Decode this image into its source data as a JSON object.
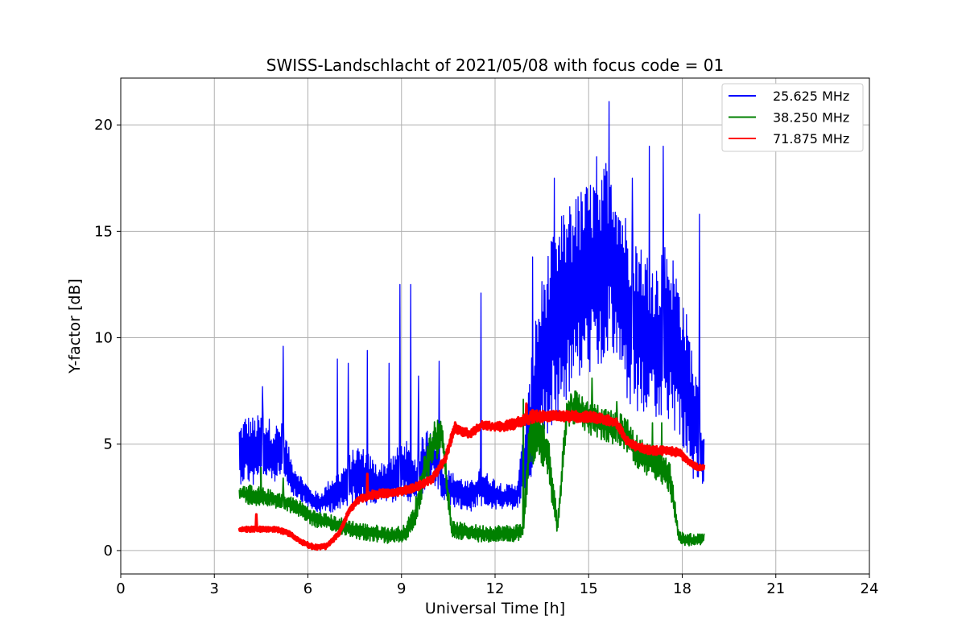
{
  "chart_data": {
    "type": "line",
    "title": "SWISS-Landschlacht of 2021/05/08 with focus code = 01",
    "xlabel": "Universal Time [h]",
    "ylabel": "Y-factor [dB]",
    "xlim": [
      0,
      24
    ],
    "ylim": [
      -1.1,
      22.2
    ],
    "xticks": [
      0,
      3,
      6,
      9,
      12,
      15,
      18,
      21,
      24
    ],
    "yticks": [
      0,
      5,
      10,
      15,
      20
    ],
    "grid": true,
    "legend_position": "top-right",
    "series": [
      {
        "name": "25.625 MHz",
        "color": "#0000ff",
        "x": [
          3.8,
          4.0,
          4.3,
          4.6,
          4.9,
          5.2,
          5.5,
          5.8,
          6.1,
          6.4,
          6.7,
          7.0,
          7.3,
          7.6,
          7.9,
          8.2,
          8.5,
          8.8,
          9.1,
          9.4,
          9.7,
          10.0,
          10.3,
          10.6,
          10.9,
          11.2,
          11.5,
          11.8,
          12.1,
          12.4,
          12.7,
          13.0,
          13.3,
          13.6,
          13.9,
          14.2,
          14.5,
          14.8,
          15.1,
          15.4,
          15.7,
          16.0,
          16.3,
          16.6,
          16.9,
          17.2,
          17.5,
          17.8,
          18.1,
          18.4,
          18.7
        ],
        "y": [
          4.5,
          4.8,
          4.6,
          4.9,
          4.5,
          4.7,
          3.4,
          2.9,
          2.4,
          2.2,
          2.6,
          2.8,
          3.3,
          3.6,
          3.4,
          3.1,
          3.2,
          3.5,
          3.9,
          3.2,
          4.0,
          4.6,
          3.2,
          2.9,
          2.7,
          2.5,
          3.0,
          2.8,
          2.6,
          2.5,
          2.6,
          4.5,
          7.5,
          9.5,
          10.5,
          11.5,
          12.0,
          12.5,
          13.0,
          13.5,
          14.0,
          12.5,
          11.0,
          10.5,
          10.0,
          9.5,
          10.5,
          9.5,
          8.0,
          6.0,
          4.0
        ],
        "spread": [
          1.4,
          1.6,
          1.7,
          1.6,
          1.5,
          1.3,
          0.8,
          0.6,
          0.5,
          0.5,
          0.8,
          1.0,
          1.2,
          1.4,
          1.3,
          1.0,
          1.0,
          1.2,
          1.5,
          1.0,
          1.5,
          1.5,
          0.9,
          0.8,
          0.8,
          0.7,
          0.9,
          0.8,
          0.7,
          0.6,
          0.7,
          2.0,
          3.5,
          4.2,
          4.5,
          4.6,
          4.6,
          4.6,
          4.6,
          4.8,
          4.8,
          4.5,
          4.3,
          4.3,
          4.0,
          4.0,
          4.3,
          4.0,
          3.5,
          3.0,
          1.5
        ],
        "spikes": [
          [
            4.55,
            7.7
          ],
          [
            5.2,
            9.6
          ],
          [
            6.95,
            9.0
          ],
          [
            7.3,
            8.8
          ],
          [
            7.9,
            9.4
          ],
          [
            8.6,
            8.8
          ],
          [
            8.95,
            12.5
          ],
          [
            9.3,
            12.5
          ],
          [
            9.55,
            8.2
          ],
          [
            10.2,
            8.9
          ],
          [
            11.55,
            12.1
          ],
          [
            13.2,
            13.8
          ],
          [
            13.9,
            17.5
          ],
          [
            14.6,
            16.5
          ],
          [
            15.25,
            18.5
          ],
          [
            15.65,
            21.1
          ],
          [
            16.4,
            17.5
          ],
          [
            16.95,
            19.0
          ],
          [
            17.4,
            19.0
          ],
          [
            18.55,
            15.8
          ]
        ]
      },
      {
        "name": "38.250 MHz",
        "color": "#008000",
        "x": [
          3.8,
          4.2,
          4.7,
          5.2,
          5.7,
          6.2,
          6.7,
          7.2,
          7.7,
          8.2,
          8.7,
          9.1,
          9.4,
          9.7,
          10.0,
          10.3,
          10.6,
          11.0,
          11.5,
          12.0,
          12.5,
          12.9,
          13.1,
          13.4,
          13.7,
          14.0,
          14.3,
          14.6,
          15.0,
          15.4,
          15.8,
          16.2,
          16.6,
          17.0,
          17.3,
          17.6,
          17.9,
          18.2,
          18.5,
          18.7
        ],
        "y": [
          2.7,
          2.6,
          2.5,
          2.3,
          2.0,
          1.5,
          1.3,
          1.1,
          0.9,
          0.8,
          0.7,
          0.8,
          1.5,
          3.5,
          5.0,
          5.5,
          1.0,
          0.9,
          0.8,
          0.8,
          0.8,
          0.9,
          5.0,
          5.5,
          4.5,
          1.0,
          6.5,
          6.8,
          6.2,
          6.0,
          5.8,
          5.5,
          4.5,
          4.2,
          4.0,
          3.5,
          0.6,
          0.5,
          0.5,
          0.6
        ],
        "spread": [
          0.3,
          0.5,
          0.4,
          0.4,
          0.4,
          0.4,
          0.4,
          0.4,
          0.4,
          0.4,
          0.4,
          0.4,
          0.6,
          0.9,
          1.0,
          0.9,
          0.4,
          0.4,
          0.4,
          0.4,
          0.4,
          0.4,
          1.2,
          1.2,
          1.2,
          0.5,
          0.8,
          0.8,
          0.8,
          0.8,
          0.8,
          0.8,
          0.8,
          0.8,
          0.8,
          0.8,
          0.3,
          0.3,
          0.3,
          0.3
        ],
        "spikes": [
          [
            4.5,
            3.9
          ],
          [
            5.2,
            3.4
          ],
          [
            12.9,
            7.1
          ],
          [
            14.45,
            7.3
          ],
          [
            15.1,
            8.1
          ],
          [
            15.9,
            7.0
          ],
          [
            17.05,
            6.0
          ],
          [
            17.35,
            6.0
          ]
        ]
      },
      {
        "name": "71.875 MHz",
        "color": "#ff0000",
        "x": [
          3.8,
          4.2,
          4.6,
          5.0,
          5.4,
          5.8,
          6.2,
          6.6,
          7.0,
          7.3,
          7.6,
          8.0,
          8.5,
          9.0,
          9.5,
          10.0,
          10.4,
          10.7,
          10.9,
          11.2,
          11.6,
          12.0,
          12.5,
          12.9,
          13.2,
          13.6,
          14.0,
          14.5,
          15.0,
          15.5,
          15.9,
          16.2,
          16.5,
          17.0,
          17.5,
          17.9,
          18.2,
          18.5,
          18.7
        ],
        "y": [
          1.0,
          1.0,
          1.0,
          1.0,
          0.8,
          0.4,
          0.15,
          0.2,
          0.8,
          1.8,
          2.4,
          2.6,
          2.7,
          2.8,
          3.0,
          3.4,
          4.3,
          5.8,
          5.6,
          5.5,
          5.9,
          5.8,
          5.9,
          6.1,
          6.3,
          6.3,
          6.3,
          6.3,
          6.3,
          6.2,
          6.0,
          5.2,
          4.9,
          4.7,
          4.7,
          4.6,
          4.2,
          3.9,
          3.9
        ],
        "spread": [
          0.12,
          0.12,
          0.12,
          0.12,
          0.12,
          0.12,
          0.12,
          0.12,
          0.12,
          0.15,
          0.2,
          0.2,
          0.2,
          0.2,
          0.2,
          0.2,
          0.2,
          0.25,
          0.2,
          0.2,
          0.2,
          0.2,
          0.25,
          0.25,
          0.3,
          0.25,
          0.25,
          0.25,
          0.25,
          0.25,
          0.25,
          0.2,
          0.2,
          0.2,
          0.2,
          0.2,
          0.15,
          0.15,
          0.15
        ],
        "spikes": [
          [
            4.35,
            1.7
          ],
          [
            7.9,
            3.6
          ],
          [
            13.0,
            6.9
          ]
        ]
      }
    ]
  }
}
